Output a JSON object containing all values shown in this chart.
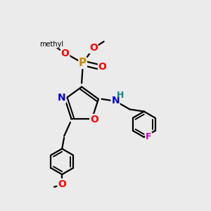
{
  "background_color": "#ebebeb",
  "bond_color": "#000000",
  "bond_width": 1.6,
  "atom_colors": {
    "N": "#0000cc",
    "O": "#ff0000",
    "P": "#cc8800",
    "F": "#cc00cc",
    "H": "#008888",
    "C": "#000000"
  },
  "font_size": 9,
  "figsize": [
    3.0,
    3.0
  ],
  "dpi": 100
}
